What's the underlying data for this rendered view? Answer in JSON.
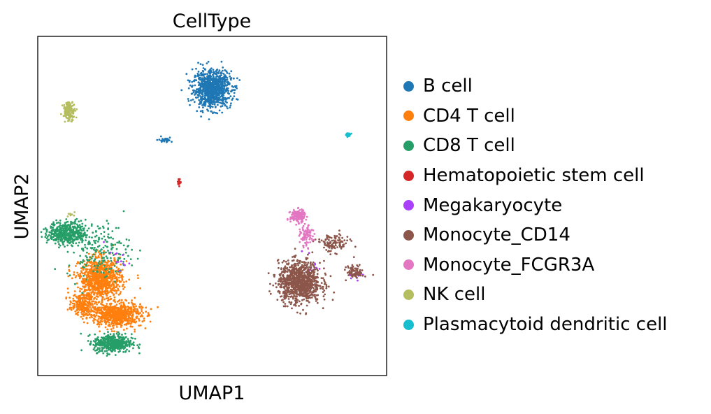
{
  "chart_data": {
    "type": "scatter",
    "title": "CellType",
    "xlabel": "UMAP1",
    "ylabel": "UMAP2",
    "xlim": [
      -10,
      10
    ],
    "ylim": [
      -10,
      10
    ],
    "ticks": "none",
    "grid": false,
    "legend_position": "right",
    "series": [
      {
        "name": "B cell",
        "color": "#1f77b4",
        "clusters": [
          {
            "center": [
              0.0,
              6.9
            ],
            "spread": [
              0.9,
              0.9
            ],
            "count": 900
          },
          {
            "center": [
              -2.7,
              3.9
            ],
            "spread": [
              0.35,
              0.12
            ],
            "count": 25
          }
        ]
      },
      {
        "name": "CD4 T cell",
        "color": "#ff7f0e",
        "clusters": [
          {
            "center": [
              -6.4,
              -4.3
            ],
            "spread": [
              1.0,
              1.0
            ],
            "count": 900
          },
          {
            "center": [
              -5.5,
              -6.4
            ],
            "spread": [
              1.2,
              0.6
            ],
            "count": 700
          },
          {
            "center": [
              -7.5,
              -5.8
            ],
            "spread": [
              0.6,
              0.5
            ],
            "count": 200
          }
        ]
      },
      {
        "name": "CD8 T cell",
        "color": "#279e68",
        "clusters": [
          {
            "center": [
              -8.3,
              -1.6
            ],
            "spread": [
              0.9,
              0.55
            ],
            "count": 450
          },
          {
            "center": [
              -5.7,
              -8.1
            ],
            "spread": [
              0.9,
              0.45
            ],
            "count": 450
          },
          {
            "center": [
              -6.5,
              -2.6
            ],
            "spread": [
              1.5,
              1.4
            ],
            "count": 200
          }
        ]
      },
      {
        "name": "Hematopoietic stem cell",
        "color": "#d62728",
        "clusters": [
          {
            "center": [
              -1.9,
              1.4
            ],
            "spread": [
              0.08,
              0.18
            ],
            "count": 15
          }
        ]
      },
      {
        "name": "Megakaryocyte",
        "color": "#aa40fc",
        "clusters": [
          {
            "center": [
              -5.5,
              -3.2
            ],
            "spread": [
              0.6,
              0.5
            ],
            "count": 12
          },
          {
            "center": [
              5.6,
              -3.5
            ],
            "spread": [
              0.5,
              0.7
            ],
            "count": 12
          },
          {
            "center": [
              8.4,
              -4.1
            ],
            "spread": [
              0.4,
              0.3
            ],
            "count": 10
          }
        ]
      },
      {
        "name": "Monocyte_CD14",
        "color": "#8c564b",
        "clusters": [
          {
            "center": [
              5.0,
              -4.5
            ],
            "spread": [
              1.0,
              1.0
            ],
            "count": 1000
          },
          {
            "center": [
              6.9,
              -2.2
            ],
            "spread": [
              0.8,
              0.45
            ],
            "count": 120
          },
          {
            "center": [
              8.2,
              -3.9
            ],
            "spread": [
              0.4,
              0.3
            ],
            "count": 80
          }
        ]
      },
      {
        "name": "Monocyte_FCGR3A",
        "color": "#e377c2",
        "clusters": [
          {
            "center": [
              4.9,
              -0.6
            ],
            "spread": [
              0.35,
              0.3
            ],
            "count": 180
          },
          {
            "center": [
              5.4,
              -1.8
            ],
            "spread": [
              0.3,
              0.5
            ],
            "count": 90
          }
        ]
      },
      {
        "name": "NK cell",
        "color": "#b5bd61",
        "clusters": [
          {
            "center": [
              -8.2,
              5.6
            ],
            "spread": [
              0.3,
              0.45
            ],
            "count": 140
          },
          {
            "center": [
              -8.1,
              -0.5
            ],
            "spread": [
              0.2,
              0.12
            ],
            "count": 8
          }
        ]
      },
      {
        "name": "Plasmacytoid dendritic cell",
        "color": "#17becf",
        "clusters": [
          {
            "center": [
              7.8,
              4.2
            ],
            "spread": [
              0.12,
              0.08
            ],
            "count": 25
          }
        ]
      }
    ]
  }
}
